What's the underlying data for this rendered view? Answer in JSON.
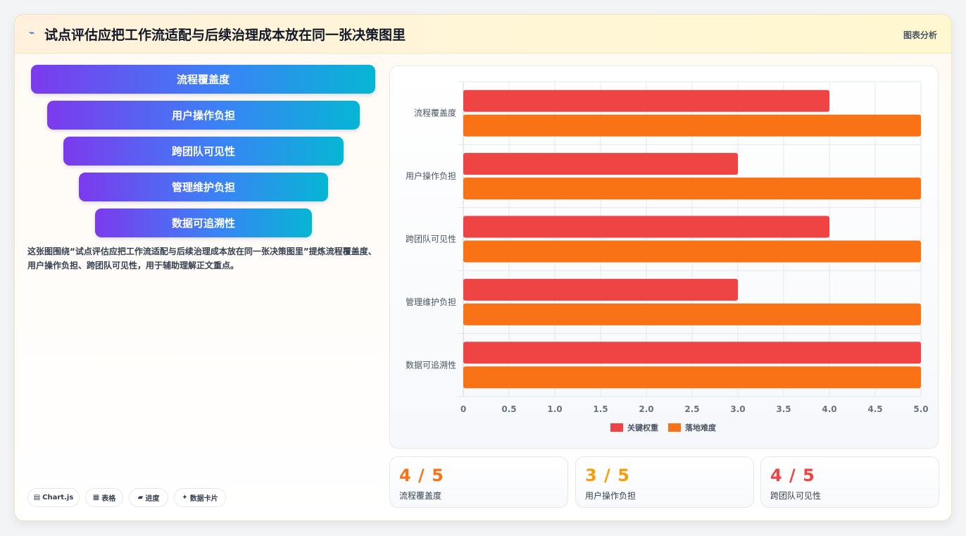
{
  "header": {
    "icon": "pulse-icon",
    "title": "试点评估应把工作流适配与后续治理成本放在同一张决策图里",
    "tag": "图表分析"
  },
  "funnel": [
    {
      "label": "流程覆盖度"
    },
    {
      "label": "用户操作负担"
    },
    {
      "label": "跨团队可见性"
    },
    {
      "label": "管理维护负担"
    },
    {
      "label": "数据可追溯性"
    }
  ],
  "description": "这张图围绕“试点评估应把工作流适配与后续治理成本放在同一张决策图里”提炼流程覆盖度、用户操作负担、跨团队可见性，用于辅助理解正文重点。",
  "chips": [
    {
      "icon": "chart-icon",
      "glyph": "▤",
      "label": "Chart.js"
    },
    {
      "icon": "table-icon",
      "glyph": "▦",
      "label": "表格"
    },
    {
      "icon": "progress-icon",
      "glyph": "▰",
      "label": "进度"
    },
    {
      "icon": "sparkle-icon",
      "glyph": "✦",
      "label": "数据卡片"
    }
  ],
  "chart_data": {
    "type": "bar",
    "orientation": "horizontal",
    "categories": [
      "流程覆盖度",
      "用户操作负担",
      "跨团队可见性",
      "管理维护负担",
      "数据可追溯性"
    ],
    "series": [
      {
        "name": "关键权重",
        "color": "#ef4444",
        "values": [
          4,
          3,
          4,
          3,
          5
        ]
      },
      {
        "name": "落地难度",
        "color": "#f97316",
        "values": [
          5,
          5,
          5,
          5,
          5
        ]
      }
    ],
    "xlim": [
      0,
      5
    ],
    "ticks": [
      "0",
      "0.5",
      "1.0",
      "1.5",
      "2.0",
      "2.5",
      "3.0",
      "3.5",
      "4.0",
      "4.5",
      "5.0"
    ],
    "tick_values": [
      0,
      0.5,
      1,
      1.5,
      2,
      2.5,
      3,
      3.5,
      4,
      4.5,
      5
    ],
    "grid": true,
    "legend": "bottom"
  },
  "stats": [
    {
      "value": "4 / 5",
      "label": "流程覆盖度",
      "color": "#f97316"
    },
    {
      "value": "3 / 5",
      "label": "用户操作负担",
      "color": "#f59e0b"
    },
    {
      "value": "4 / 5",
      "label": "跨团队可见性",
      "color": "#ef4444"
    }
  ]
}
